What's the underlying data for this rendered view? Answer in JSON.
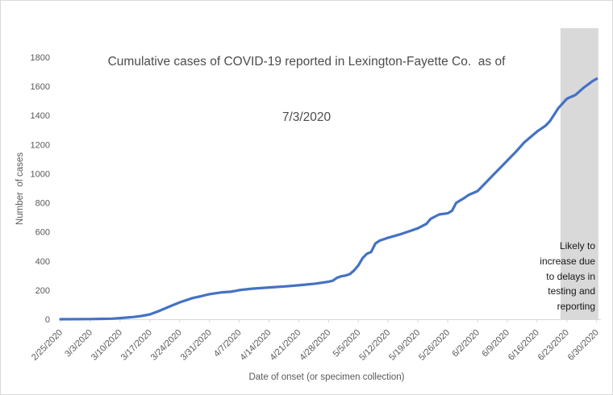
{
  "chart_data": {
    "type": "line",
    "title": "Cumulative cases of COVID-19 reported in Lexington-Fayette Co.  as of 7/3/2020",
    "title_lines": [
      "Cumulative cases of COVID-19 reported in Lexington-Fayette Co.  as of",
      "7/3/2020"
    ],
    "xlabel": "Date of onset (or specimen collection)",
    "ylabel": "Number  of cases",
    "ylim": [
      0,
      1800
    ],
    "ytick_step": 200,
    "y_ticks": [
      0,
      200,
      400,
      600,
      800,
      1000,
      1200,
      1400,
      1600,
      1800
    ],
    "gridlines": "none",
    "legend": "none",
    "x_ticks": [
      {
        "day": 0,
        "label": "2/25/2020"
      },
      {
        "day": 7,
        "label": "3/3/2020"
      },
      {
        "day": 14,
        "label": "3/10/2020"
      },
      {
        "day": 21,
        "label": "3/17/2020"
      },
      {
        "day": 28,
        "label": "3/24/2020"
      },
      {
        "day": 35,
        "label": "3/31/2020"
      },
      {
        "day": 42,
        "label": "4/7/2020"
      },
      {
        "day": 49,
        "label": "4/14/2020"
      },
      {
        "day": 56,
        "label": "4/21/2020"
      },
      {
        "day": 63,
        "label": "4/28/2020"
      },
      {
        "day": 70,
        "label": "5/5/2020"
      },
      {
        "day": 77,
        "label": "5/12/2020"
      },
      {
        "day": 84,
        "label": "5/19/2020"
      },
      {
        "day": 91,
        "label": "5/26/2020"
      },
      {
        "day": 98,
        "label": "6/2/2020"
      },
      {
        "day": 105,
        "label": "6/9/2020"
      },
      {
        "day": 112,
        "label": "6/16/2020"
      },
      {
        "day": 119,
        "label": "6/23/2020"
      },
      {
        "day": 126,
        "label": "6/30/2020"
      }
    ],
    "x": [
      0,
      7,
      12,
      14,
      17,
      19,
      21,
      23,
      25,
      28,
      31,
      33,
      35,
      38,
      40,
      42,
      45,
      49,
      53,
      56,
      60,
      63,
      64,
      65,
      66,
      67,
      68,
      69,
      70,
      71,
      72,
      73,
      74,
      75,
      76,
      77,
      80,
      84,
      86,
      87,
      89,
      91,
      92,
      93,
      95,
      96,
      98,
      100,
      102,
      103,
      105,
      107,
      109,
      110,
      112,
      114,
      115,
      117,
      119,
      120,
      121,
      123,
      125,
      126
    ],
    "dates": [
      "2/25/2020",
      "3/3/2020",
      "3/8/2020",
      "3/10/2020",
      "3/13/2020",
      "3/15/2020",
      "3/17/2020",
      "3/19/2020",
      "3/21/2020",
      "3/24/2020",
      "3/27/2020",
      "3/29/2020",
      "3/31/2020",
      "4/3/2020",
      "4/5/2020",
      "4/7/2020",
      "4/10/2020",
      "4/14/2020",
      "4/18/2020",
      "4/21/2020",
      "4/25/2020",
      "4/28/2020",
      "4/29/2020",
      "4/30/2020",
      "5/1/2020",
      "5/2/2020",
      "5/3/2020",
      "5/4/2020",
      "5/5/2020",
      "5/6/2020",
      "5/7/2020",
      "5/8/2020",
      "5/9/2020",
      "5/10/2020",
      "5/11/2020",
      "5/12/2020",
      "5/15/2020",
      "5/19/2020",
      "5/21/2020",
      "5/22/2020",
      "5/24/2020",
      "5/26/2020",
      "5/27/2020",
      "5/28/2020",
      "5/30/2020",
      "5/31/2020",
      "6/2/2020",
      "6/4/2020",
      "6/6/2020",
      "6/7/2020",
      "6/9/2020",
      "6/11/2020",
      "6/13/2020",
      "6/14/2020",
      "6/16/2020",
      "6/18/2020",
      "6/19/2020",
      "6/21/2020",
      "6/23/2020",
      "6/24/2020",
      "6/25/2020",
      "6/27/2020",
      "6/29/2020",
      "6/30/2020"
    ],
    "values": [
      0,
      1,
      4,
      8,
      15,
      22,
      33,
      55,
      80,
      116,
      145,
      158,
      172,
      185,
      189,
      200,
      210,
      218,
      226,
      233,
      245,
      258,
      265,
      285,
      295,
      300,
      310,
      335,
      370,
      420,
      450,
      462,
      520,
      540,
      550,
      560,
      585,
      625,
      655,
      690,
      720,
      728,
      745,
      800,
      835,
      855,
      880,
      940,
      1000,
      1030,
      1090,
      1150,
      1215,
      1240,
      1290,
      1330,
      1360,
      1450,
      1515,
      1528,
      1540,
      1592,
      1635,
      1652
    ],
    "highlight_band": {
      "start_day": 117.5,
      "end_day": 126.4,
      "start_date_approx": "6/21/2020",
      "end_date_approx": "6/30/2020",
      "color": "#d9d9d9",
      "note_lines": [
        "Likely to",
        "increase due",
        "to delays in",
        "testing and",
        "reporting"
      ]
    },
    "colors": {
      "line": "#4472c4",
      "band": "#d9d9d9",
      "axis": "#d9d9d9",
      "tick_text": "#595959",
      "title_text": "#4c4c4c",
      "note_text": "#171717"
    }
  }
}
